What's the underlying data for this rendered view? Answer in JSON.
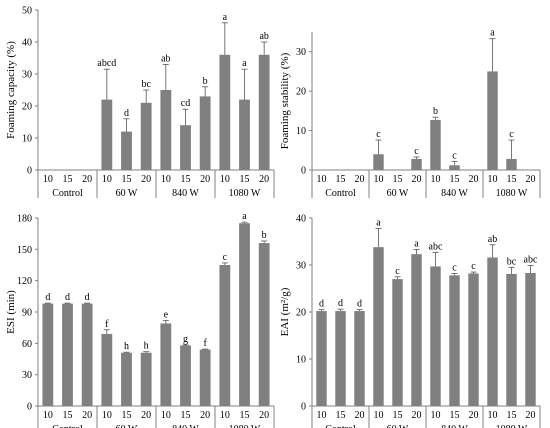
{
  "chart_data": [
    {
      "type": "bar",
      "ylabel": "Foaming capacity (%)",
      "ylim": [
        0,
        50
      ],
      "yticks": [
        0,
        10,
        20,
        30,
        40,
        50
      ],
      "categories": [
        "10",
        "15",
        "20",
        "10",
        "15",
        "20",
        "10",
        "15",
        "20",
        "10",
        "15",
        "20"
      ],
      "groups": [
        "Control",
        "60 W",
        "840 W",
        "1080 W"
      ],
      "values": [
        0,
        0,
        0,
        22,
        12,
        21,
        25,
        14,
        23,
        36,
        22,
        36
      ],
      "errors": [
        0,
        0,
        0,
        9.5,
        4,
        4,
        8,
        5,
        3,
        10,
        9.5,
        4
      ],
      "labels": [
        "",
        "",
        "",
        "abcd",
        "d",
        "bc",
        "ab",
        "cd",
        "b",
        "a",
        "a",
        "ab"
      ]
    },
    {
      "type": "bar",
      "ylabel": "Foaming stability (%)",
      "ylim": [
        0,
        35
      ],
      "yticks": [
        0,
        10,
        20,
        30
      ],
      "categories": [
        "10",
        "15",
        "20",
        "10",
        "15",
        "20",
        "10",
        "15",
        "20",
        "10",
        "15",
        "20"
      ],
      "groups": [
        "Control",
        "60 W",
        "840 W",
        "1080 W"
      ],
      "values": [
        0,
        0,
        0,
        4,
        0,
        2.8,
        12.7,
        1.2,
        0,
        25,
        2.8,
        0
      ],
      "errors": [
        0,
        0,
        0,
        3.6,
        0,
        0.5,
        0.7,
        1.0,
        0,
        8.3,
        4.8,
        0
      ],
      "labels": [
        "",
        "",
        "",
        "c",
        "",
        "c",
        "b",
        "c",
        "",
        "a",
        "c",
        ""
      ]
    },
    {
      "type": "bar",
      "ylabel": "ESI (min)",
      "ylim": [
        0,
        180
      ],
      "yticks": [
        0,
        30,
        60,
        90,
        120,
        150,
        180
      ],
      "categories": [
        "10",
        "15",
        "20",
        "10",
        "15",
        "20",
        "10",
        "15",
        "20",
        "10",
        "15",
        "20"
      ],
      "groups": [
        "Control",
        "60 W",
        "840 W",
        "1080 W"
      ],
      "values": [
        98,
        98,
        98,
        69,
        51,
        51,
        79,
        58,
        54,
        135,
        175,
        156
      ],
      "errors": [
        0.5,
        0.5,
        0.5,
        4,
        0.5,
        1,
        3,
        0.5,
        0.5,
        2,
        1,
        2
      ],
      "labels": [
        "d",
        "d",
        "d",
        "f",
        "h",
        "h",
        "e",
        "g",
        "f",
        "c",
        "a",
        "b"
      ]
    },
    {
      "type": "bar",
      "ylabel": "EAI (m²/g)",
      "ylim": [
        0,
        40
      ],
      "yticks": [
        0,
        10,
        20,
        30,
        40
      ],
      "categories": [
        "10",
        "15",
        "20",
        "10",
        "15",
        "20",
        "10",
        "15",
        "20",
        "10",
        "15",
        "20"
      ],
      "groups": [
        "Control",
        "60 W",
        "840 W",
        "1080 W"
      ],
      "values": [
        20.2,
        20.2,
        20.2,
        33.8,
        27,
        32.3,
        29.7,
        27.8,
        28.2,
        31.6,
        28.1,
        28.3
      ],
      "errors": [
        0.3,
        0.4,
        0.3,
        4,
        0.5,
        1,
        3,
        0.4,
        0.3,
        2.7,
        1.4,
        1.6
      ],
      "labels": [
        "d",
        "d",
        "d",
        "a",
        "c",
        "a",
        "abc",
        "c",
        "c",
        "ab",
        "bc",
        "abc"
      ]
    }
  ],
  "colors": {
    "bar": "#808080",
    "axis": "#808080"
  }
}
